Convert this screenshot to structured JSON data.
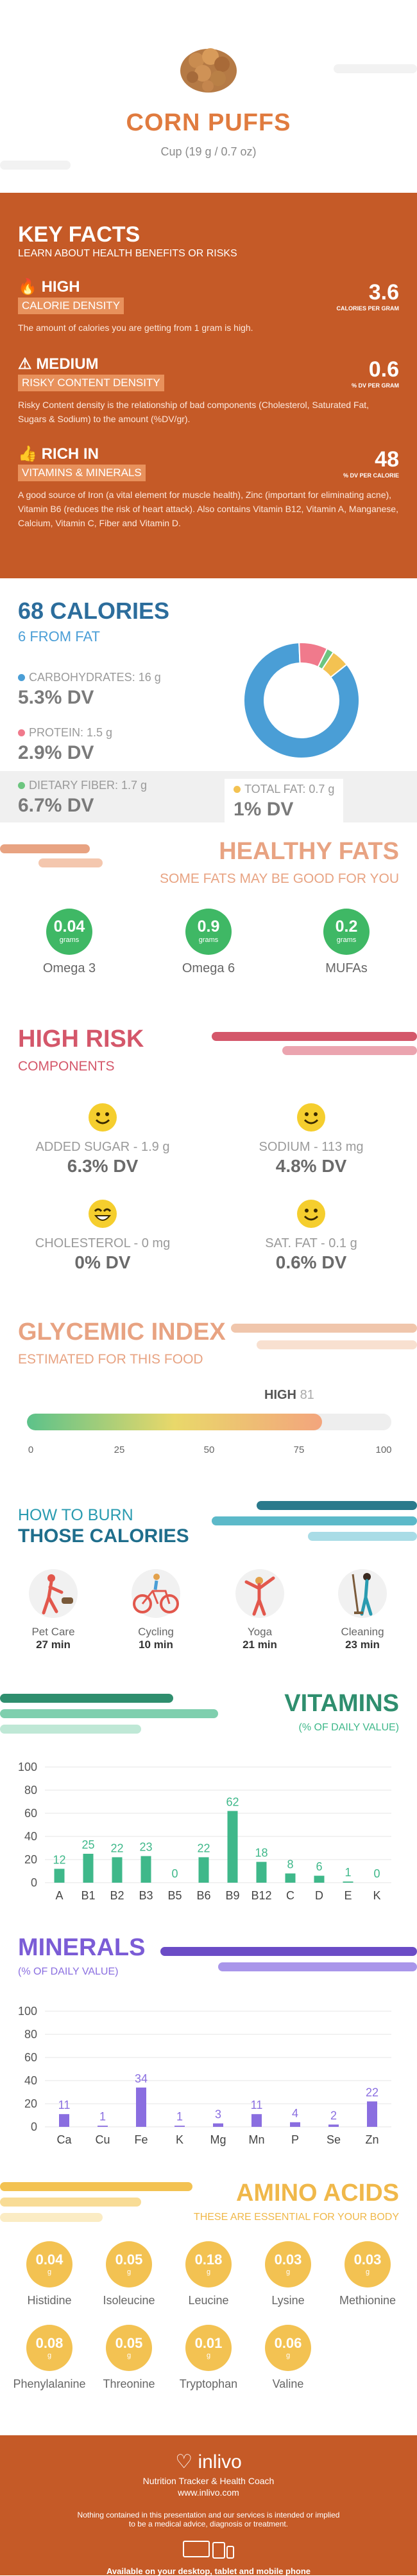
{
  "header": {
    "food_name": "CORN PUFFS",
    "serving": "Cup (19 g / 0.7 oz)"
  },
  "key_facts": {
    "title": "KEY FACTS",
    "subtitle": "LEARN ABOUT HEALTH BENEFITS OR RISKS",
    "items": [
      {
        "level": "HIGH",
        "tag": "CALORIE DENSITY",
        "value": "3.6",
        "unit": "CALORIES PER GRAM",
        "desc": "The amount of calories you are getting from 1 gram is high."
      },
      {
        "level": "MEDIUM",
        "tag": "RISKY CONTENT DENSITY",
        "value": "0.6",
        "unit": "% DV PER GRAM",
        "desc": "Risky Content density is the relationship of bad components (Cholesterol, Saturated Fat, Sugars & Sodium) to the amount (%DV/gr)."
      },
      {
        "level": "RICH IN",
        "tag": "VITAMINS & MINERALS",
        "value": "48",
        "unit": "% DV PER CALORIE",
        "desc": "A good source of Iron (a vital element for muscle health), Zinc (important for eliminating acne), Vitamin B6 (reduces the risk of heart attack). Also contains Vitamin B12, Vitamin A, Manganese, Calcium, Vitamin C, Fiber and Vitamin D."
      }
    ]
  },
  "calories": {
    "title": "68 CALORIES",
    "from_fat": "6 FROM FAT",
    "nutrients": [
      {
        "label": "CARBOHYDRATES: 16 g",
        "dv": "5.3% DV",
        "color": "#4a9ed6"
      },
      {
        "label": "PROTEIN: 1.5 g",
        "dv": "2.9% DV",
        "color": "#f07a8c"
      },
      {
        "label": "DIETARY FIBER: 1.7 g",
        "dv": "6.7% DV",
        "color": "#6cc57f"
      },
      {
        "label": "TOTAL FAT: 0.7 g",
        "dv": "1% DV",
        "color": "#f3c252"
      }
    ],
    "donut": [
      {
        "name": "carbohydrates",
        "share": 0.85,
        "color": "#4a9ed6"
      },
      {
        "name": "protein",
        "share": 0.08,
        "color": "#f07a8c"
      },
      {
        "name": "fiber",
        "share": 0.02,
        "color": "#6cc57f"
      },
      {
        "name": "fat",
        "share": 0.05,
        "color": "#f3c252"
      }
    ]
  },
  "healthy_fats": {
    "title": "HEALTHY FATS",
    "subtitle": "SOME FATS MAY BE GOOD FOR YOU",
    "items": [
      {
        "value": "0.04",
        "unit": "grams",
        "label": "Omega 3"
      },
      {
        "value": "0.9",
        "unit": "grams",
        "label": "Omega 6"
      },
      {
        "value": "0.2",
        "unit": "grams",
        "label": "MUFAs"
      }
    ]
  },
  "high_risk": {
    "title": "HIGH RISK",
    "subtitle": "COMPONENTS",
    "items": [
      {
        "label": "ADDED SUGAR - 1.9 g",
        "dv": "6.3% DV",
        "face": "smile-icon"
      },
      {
        "label": "SODIUM - 113 mg",
        "dv": "4.8% DV",
        "face": "smile-icon"
      },
      {
        "label": "CHOLESTEROL - 0 mg",
        "dv": "0% DV",
        "face": "grin-icon"
      },
      {
        "label": "SAT. FAT - 0.1 g",
        "dv": "0.6% DV",
        "face": "smile-icon"
      }
    ]
  },
  "glycemic": {
    "title": "GLYCEMIC INDEX",
    "subtitle": "ESTIMATED FOR THIS FOOD",
    "level": "HIGH",
    "value": "81",
    "value_num": 81,
    "ticks": [
      "0",
      "25",
      "50",
      "75",
      "100"
    ]
  },
  "burn": {
    "title_line1": "HOW TO BURN",
    "title_line2": "THOSE CALORIES",
    "activities": [
      {
        "name": "Pet Care",
        "time": "27 min",
        "icon": "pet-care-icon"
      },
      {
        "name": "Cycling",
        "time": "10 min",
        "icon": "cycling-icon"
      },
      {
        "name": "Yoga",
        "time": "21 min",
        "icon": "yoga-icon"
      },
      {
        "name": "Cleaning",
        "time": "23 min",
        "icon": "cleaning-icon"
      }
    ]
  },
  "chart_data": [
    {
      "type": "bar",
      "title": "VITAMINS",
      "subtitle": "(% OF DAILY VALUE)",
      "categories": [
        "A",
        "B1",
        "B2",
        "B3",
        "B5",
        "B6",
        "B9",
        "B12",
        "C",
        "D",
        "E",
        "K"
      ],
      "values": [
        12,
        25,
        22,
        23,
        0,
        22,
        62,
        18,
        8,
        6,
        1,
        0
      ],
      "yticks": [
        "0",
        "20",
        "40",
        "60",
        "80",
        "100"
      ],
      "ylim": [
        0,
        100
      ],
      "color": "#3fb88a",
      "grid": true
    },
    {
      "type": "bar",
      "title": "MINERALS",
      "subtitle": "(% OF DAILY VALUE)",
      "categories": [
        "Ca",
        "Cu",
        "Fe",
        "K",
        "Mg",
        "Mn",
        "P",
        "Se",
        "Zn"
      ],
      "values": [
        11,
        1,
        34,
        1,
        3,
        11,
        4,
        2,
        22
      ],
      "yticks": [
        "0",
        "20",
        "40",
        "60",
        "80",
        "100"
      ],
      "ylim": [
        0,
        100
      ],
      "color": "#8a6ee0",
      "grid": true
    }
  ],
  "amino_acids": {
    "title": "AMINO ACIDS",
    "subtitle": "THESE ARE ESSENTIAL FOR YOUR BODY",
    "unit": "g",
    "items": [
      {
        "value": "0.04",
        "label": "Histidine"
      },
      {
        "value": "0.05",
        "label": "Isoleucine"
      },
      {
        "value": "0.18",
        "label": "Leucine"
      },
      {
        "value": "0.03",
        "label": "Lysine"
      },
      {
        "value": "0.03",
        "label": "Methionine"
      },
      {
        "value": "0.08",
        "label": "Phenylalanine"
      },
      {
        "value": "0.05",
        "label": "Threonine"
      },
      {
        "value": "0.01",
        "label": "Tryptophan"
      },
      {
        "value": "0.06",
        "label": "Valine"
      }
    ]
  },
  "footer": {
    "brand": "inlivo",
    "tagline": "Nutrition Tracker & Health Coach",
    "url": "www.inlivo.com",
    "disclaimer_1": "Nothing contained in this presentation and our services is intended or implied",
    "disclaimer_2": "to be a medical advice, diagnosis or treatment.",
    "available": "Available on your desktop, tablet and mobile phone"
  }
}
